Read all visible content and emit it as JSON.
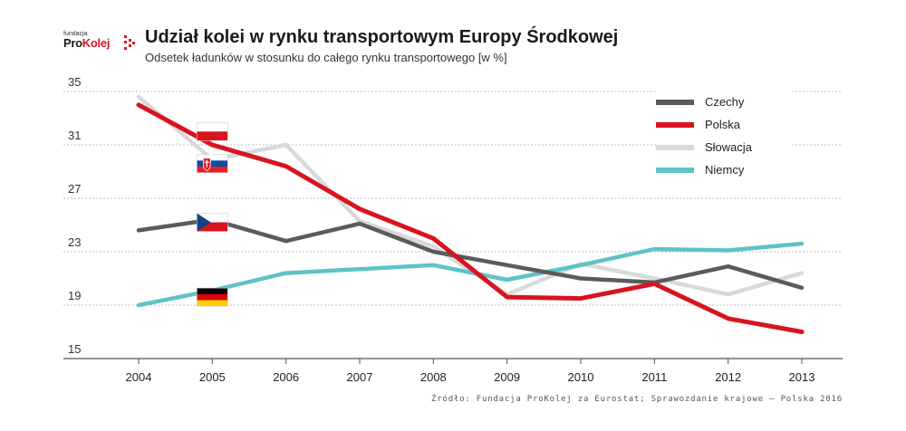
{
  "header": {
    "logo_small": "fundacja",
    "logo_pro": "Pro",
    "logo_kolej": "Kolej",
    "title": "Udział kolei w rynku transportowym Europy Środkowej",
    "subtitle": "Odsetek ładunków w stosunku do całego rynku transportowego [w %]"
  },
  "source": "Źródło: Fundacja ProKolej za Eurostat; Sprawozdanie krajowe – Polska 2016",
  "chart_data": {
    "type": "line",
    "title": "Udział kolei w rynku transportowym Europy Środkowej",
    "subtitle": "Odsetek ładunków w stosunku do całego rynku transportowego [w %]",
    "x": [
      "2004",
      "2005",
      "2006",
      "2007",
      "2008",
      "2009",
      "2010",
      "2011",
      "2012",
      "2013"
    ],
    "ylim": [
      15,
      35
    ],
    "yticks": [
      "35",
      "31",
      "27",
      "23",
      "19",
      "15"
    ],
    "grid": true,
    "legend_position": "top-right",
    "series": [
      {
        "name": "Czechy",
        "color": "#5a5c5c",
        "values": [
          24.6,
          25.4,
          23.8,
          25.1,
          23.0,
          22.0,
          21.0,
          20.7,
          21.9,
          20.3
        ]
      },
      {
        "name": "Polska",
        "color": "#d7141f",
        "values": [
          34.0,
          31.0,
          29.4,
          26.2,
          24.0,
          19.6,
          19.5,
          20.6,
          18.0,
          17.0
        ]
      },
      {
        "name": "Słowacja",
        "color": "#d8dada",
        "values": [
          34.6,
          29.9,
          31.0,
          25.3,
          23.4,
          19.8,
          22.1,
          21.0,
          19.8,
          21.4
        ]
      },
      {
        "name": "Niemcy",
        "color": "#5dc3c6",
        "values": [
          19.0,
          20.1,
          21.4,
          21.7,
          22.0,
          20.9,
          22.0,
          23.2,
          23.1,
          23.6
        ]
      }
    ],
    "flags": [
      {
        "icon": "flag-pl-icon",
        "year": "2005",
        "value": 32.0
      },
      {
        "icon": "flag-sk-icon",
        "year": "2005",
        "value": 29.6
      },
      {
        "icon": "flag-cz-icon",
        "year": "2005",
        "value": 25.2
      },
      {
        "icon": "flag-de-icon",
        "year": "2005",
        "value": 19.6
      }
    ]
  }
}
